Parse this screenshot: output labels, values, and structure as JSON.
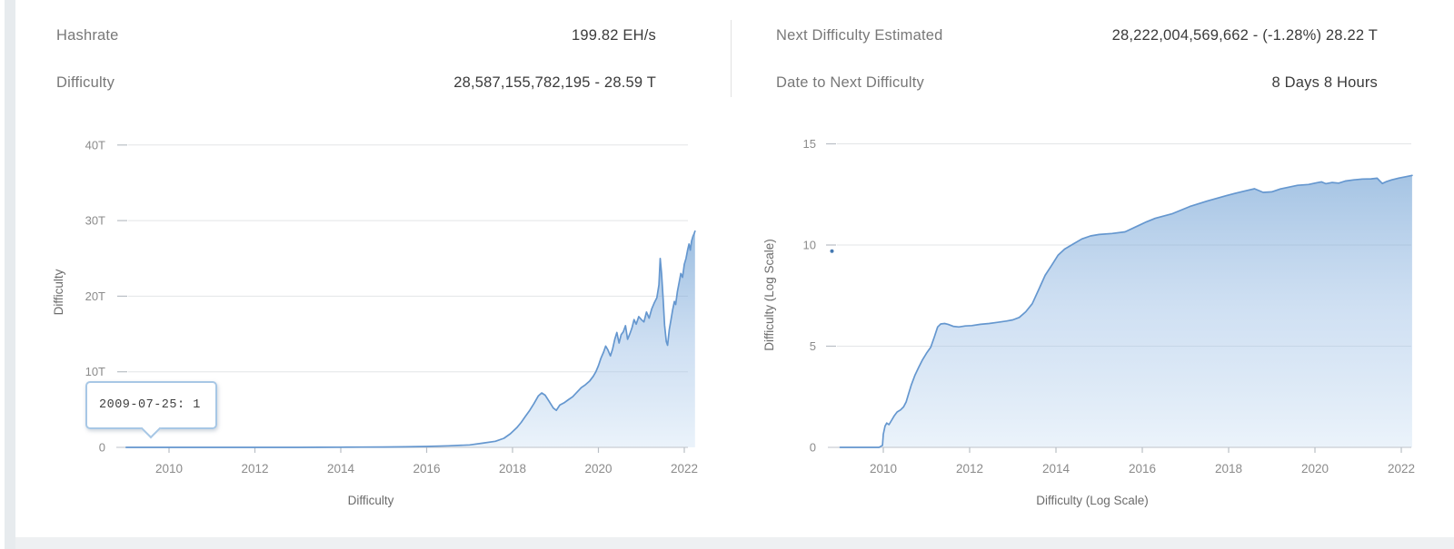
{
  "page": {
    "background": "#ffffff",
    "left_strip_color": "#e7ebee",
    "bottom_strip_color": "#eef0f2"
  },
  "summary": {
    "left": {
      "rows": [
        {
          "label": "Hashrate",
          "value": "199.82 EH/s"
        },
        {
          "label": "Difficulty",
          "value": "28,587,155,782,195 - 28.59 T"
        }
      ]
    },
    "right": {
      "rows": [
        {
          "label": "Next Difficulty Estimated",
          "value": "28,222,004,569,662 - (-1.28%) 28.22 T"
        },
        {
          "label": "Date to Next Difficulty",
          "value": "8 Days 8 Hours"
        }
      ]
    },
    "label_color": "#787878",
    "value_color": "#3b3b3b"
  },
  "tooltip": {
    "text": "2009-07-25: 1",
    "border_color": "#a7c7e5",
    "anchor_date": "2009-07-25",
    "anchor_value": "1"
  },
  "chart_data": [
    {
      "type": "area",
      "name": "difficulty-linear",
      "xlabel": "Difficulty",
      "ylabel": "Difficulty",
      "xlim": [
        2009,
        2022.25
      ],
      "ylim": [
        0,
        40
      ],
      "grid": true,
      "legend": false,
      "unit": "T (difficulty, trillions)",
      "x_ticks": [
        {
          "year": 2010,
          "label": "2010"
        },
        {
          "year": 2012,
          "label": "2012"
        },
        {
          "year": 2014,
          "label": "2014"
        },
        {
          "year": 2016,
          "label": "2016"
        },
        {
          "year": 2018,
          "label": "2018"
        },
        {
          "year": 2020,
          "label": "2020"
        },
        {
          "year": 2022,
          "label": "2022"
        }
      ],
      "y_ticks": [
        {
          "v": 0,
          "label": "0"
        },
        {
          "v": 10,
          "label": "10T"
        },
        {
          "v": 20,
          "label": "20T"
        },
        {
          "v": 30,
          "label": "30T"
        },
        {
          "v": 40,
          "label": "40T"
        }
      ],
      "series": [
        {
          "name": "Difficulty",
          "points": [
            [
              2009,
              0
            ],
            [
              2009.56,
              0
            ],
            [
              2010,
              0
            ],
            [
              2011,
              0
            ],
            [
              2012,
              0.001
            ],
            [
              2013,
              0.004
            ],
            [
              2013.5,
              0.01
            ],
            [
              2014,
              0.02
            ],
            [
              2014.5,
              0.035
            ],
            [
              2015,
              0.05
            ],
            [
              2015.5,
              0.07
            ],
            [
              2016,
              0.12
            ],
            [
              2016.5,
              0.2
            ],
            [
              2017,
              0.33
            ],
            [
              2017.3,
              0.55
            ],
            [
              2017.6,
              0.8
            ],
            [
              2017.8,
              1.2
            ],
            [
              2017.95,
              1.8
            ],
            [
              2018.1,
              2.6
            ],
            [
              2018.2,
              3.3
            ],
            [
              2018.3,
              4.1
            ],
            [
              2018.4,
              4.9
            ],
            [
              2018.5,
              5.8
            ],
            [
              2018.6,
              6.8
            ],
            [
              2018.68,
              7.2
            ],
            [
              2018.76,
              6.9
            ],
            [
              2018.85,
              6.1
            ],
            [
              2018.95,
              5.2
            ],
            [
              2019.02,
              4.9
            ],
            [
              2019.1,
              5.6
            ],
            [
              2019.2,
              5.9
            ],
            [
              2019.3,
              6.3
            ],
            [
              2019.4,
              6.7
            ],
            [
              2019.5,
              7.3
            ],
            [
              2019.6,
              7.9
            ],
            [
              2019.7,
              8.3
            ],
            [
              2019.8,
              8.8
            ],
            [
              2019.88,
              9.4
            ],
            [
              2019.94,
              10.0
            ],
            [
              2020.0,
              10.8
            ],
            [
              2020.06,
              11.8
            ],
            [
              2020.12,
              12.6
            ],
            [
              2020.17,
              13.4
            ],
            [
              2020.22,
              12.9
            ],
            [
              2020.28,
              12.1
            ],
            [
              2020.33,
              13.0
            ],
            [
              2020.38,
              14.3
            ],
            [
              2020.43,
              15.2
            ],
            [
              2020.48,
              13.8
            ],
            [
              2020.53,
              14.9
            ],
            [
              2020.58,
              15.3
            ],
            [
              2020.63,
              16.1
            ],
            [
              2020.68,
              14.3
            ],
            [
              2020.73,
              15.0
            ],
            [
              2020.78,
              15.8
            ],
            [
              2020.83,
              16.9
            ],
            [
              2020.88,
              16.3
            ],
            [
              2020.94,
              17.3
            ],
            [
              2021.0,
              16.9
            ],
            [
              2021.06,
              16.6
            ],
            [
              2021.12,
              17.9
            ],
            [
              2021.18,
              17.1
            ],
            [
              2021.24,
              18.3
            ],
            [
              2021.3,
              19.1
            ],
            [
              2021.36,
              19.8
            ],
            [
              2021.41,
              21.5
            ],
            [
              2021.44,
              25.0
            ],
            [
              2021.47,
              23.0
            ],
            [
              2021.51,
              19.5
            ],
            [
              2021.54,
              16.2
            ],
            [
              2021.58,
              14.0
            ],
            [
              2021.61,
              13.5
            ],
            [
              2021.65,
              15.6
            ],
            [
              2021.69,
              16.9
            ],
            [
              2021.73,
              18.2
            ],
            [
              2021.77,
              19.3
            ],
            [
              2021.8,
              18.9
            ],
            [
              2021.84,
              20.6
            ],
            [
              2021.88,
              21.8
            ],
            [
              2021.92,
              23.0
            ],
            [
              2021.96,
              22.5
            ],
            [
              2022.0,
              24.2
            ],
            [
              2022.04,
              25.0
            ],
            [
              2022.08,
              26.2
            ],
            [
              2022.11,
              26.9
            ],
            [
              2022.14,
              26.1
            ],
            [
              2022.17,
              27.3
            ],
            [
              2022.2,
              27.9
            ],
            [
              2022.23,
              28.3
            ],
            [
              2022.25,
              28.59
            ]
          ]
        }
      ],
      "colors": {
        "line": "#6597cf",
        "fill_top": "#5b93cc",
        "fill_mid": "#8fb6e2",
        "fill_bottom": "#d7e7f6",
        "grid": "#e3e5e7",
        "axis": "#c9ced3",
        "tick": "#b9bfc5",
        "tick_label": "#8b8b8b",
        "axis_title": "#6b6b6b"
      }
    },
    {
      "type": "area",
      "name": "difficulty-log-scale",
      "xlabel": "Difficulty (Log Scale)",
      "ylabel": "Difficulty (Log Scale)",
      "xlim": [
        2009,
        2022.25
      ],
      "ylim": [
        0,
        15
      ],
      "grid": true,
      "legend": false,
      "unit": "log10(difficulty)",
      "x_ticks": [
        {
          "year": 2010,
          "label": "2010"
        },
        {
          "year": 2012,
          "label": "2012"
        },
        {
          "year": 2014,
          "label": "2014"
        },
        {
          "year": 2016,
          "label": "2016"
        },
        {
          "year": 2018,
          "label": "2018"
        },
        {
          "year": 2020,
          "label": "2020"
        },
        {
          "year": 2022,
          "label": "2022"
        }
      ],
      "y_ticks": [
        {
          "v": 0,
          "label": "0"
        },
        {
          "v": 5,
          "label": "5"
        },
        {
          "v": 10,
          "label": "10"
        },
        {
          "v": 15,
          "label": "15"
        }
      ],
      "series": [
        {
          "name": "Difficulty (Log Scale)",
          "points": [
            [
              2009,
              0
            ],
            [
              2009.9,
              0
            ],
            [
              2009.98,
              0.1
            ],
            [
              2010.0,
              0.65
            ],
            [
              2010.04,
              1.05
            ],
            [
              2010.08,
              1.2
            ],
            [
              2010.13,
              1.12
            ],
            [
              2010.18,
              1.3
            ],
            [
              2010.25,
              1.55
            ],
            [
              2010.32,
              1.75
            ],
            [
              2010.4,
              1.85
            ],
            [
              2010.47,
              2.0
            ],
            [
              2010.53,
              2.25
            ],
            [
              2010.58,
              2.6
            ],
            [
              2010.65,
              3.1
            ],
            [
              2010.73,
              3.55
            ],
            [
              2010.82,
              3.95
            ],
            [
              2010.9,
              4.3
            ],
            [
              2011.0,
              4.65
            ],
            [
              2011.1,
              4.95
            ],
            [
              2011.18,
              5.45
            ],
            [
              2011.26,
              5.95
            ],
            [
              2011.33,
              6.1
            ],
            [
              2011.42,
              6.12
            ],
            [
              2011.5,
              6.08
            ],
            [
              2011.62,
              5.98
            ],
            [
              2011.75,
              5.95
            ],
            [
              2011.9,
              6.0
            ],
            [
              2012.05,
              6.02
            ],
            [
              2012.25,
              6.08
            ],
            [
              2012.45,
              6.12
            ],
            [
              2012.65,
              6.18
            ],
            [
              2012.85,
              6.24
            ],
            [
              2013.0,
              6.3
            ],
            [
              2013.15,
              6.42
            ],
            [
              2013.3,
              6.7
            ],
            [
              2013.45,
              7.1
            ],
            [
              2013.6,
              7.8
            ],
            [
              2013.75,
              8.5
            ],
            [
              2013.9,
              9.0
            ],
            [
              2014.05,
              9.5
            ],
            [
              2014.2,
              9.8
            ],
            [
              2014.4,
              10.05
            ],
            [
              2014.6,
              10.3
            ],
            [
              2014.8,
              10.45
            ],
            [
              2015.0,
              10.52
            ],
            [
              2015.3,
              10.57
            ],
            [
              2015.6,
              10.65
            ],
            [
              2015.9,
              10.95
            ],
            [
              2016.1,
              11.15
            ],
            [
              2016.3,
              11.32
            ],
            [
              2016.7,
              11.55
            ],
            [
              2017.1,
              11.9
            ],
            [
              2017.5,
              12.17
            ],
            [
              2017.95,
              12.44
            ],
            [
              2018.15,
              12.55
            ],
            [
              2018.4,
              12.68
            ],
            [
              2018.6,
              12.78
            ],
            [
              2018.8,
              12.6
            ],
            [
              2019.0,
              12.63
            ],
            [
              2019.2,
              12.77
            ],
            [
              2019.4,
              12.86
            ],
            [
              2019.6,
              12.95
            ],
            [
              2019.85,
              12.99
            ],
            [
              2020.05,
              13.08
            ],
            [
              2020.15,
              13.12
            ],
            [
              2020.25,
              13.03
            ],
            [
              2020.4,
              13.09
            ],
            [
              2020.55,
              13.06
            ],
            [
              2020.7,
              13.16
            ],
            [
              2020.9,
              13.22
            ],
            [
              2021.1,
              13.26
            ],
            [
              2021.3,
              13.27
            ],
            [
              2021.44,
              13.3
            ],
            [
              2021.56,
              13.04
            ],
            [
              2021.65,
              13.13
            ],
            [
              2021.78,
              13.22
            ],
            [
              2021.95,
              13.31
            ],
            [
              2022.1,
              13.37
            ],
            [
              2022.25,
              13.44
            ]
          ]
        }
      ],
      "point_marker": {
        "year": 2008.81,
        "value": 9.7,
        "color": "#4579b2"
      },
      "colors": {
        "line": "#6597cf",
        "fill_top": "#5b93cc",
        "fill_mid": "#8fb6e2",
        "fill_bottom": "#d7e7f6",
        "grid": "#e3e5e7",
        "axis": "#c9ced3",
        "tick": "#b9bfc5",
        "tick_label": "#8b8b8b",
        "axis_title": "#6b6b6b"
      }
    }
  ]
}
